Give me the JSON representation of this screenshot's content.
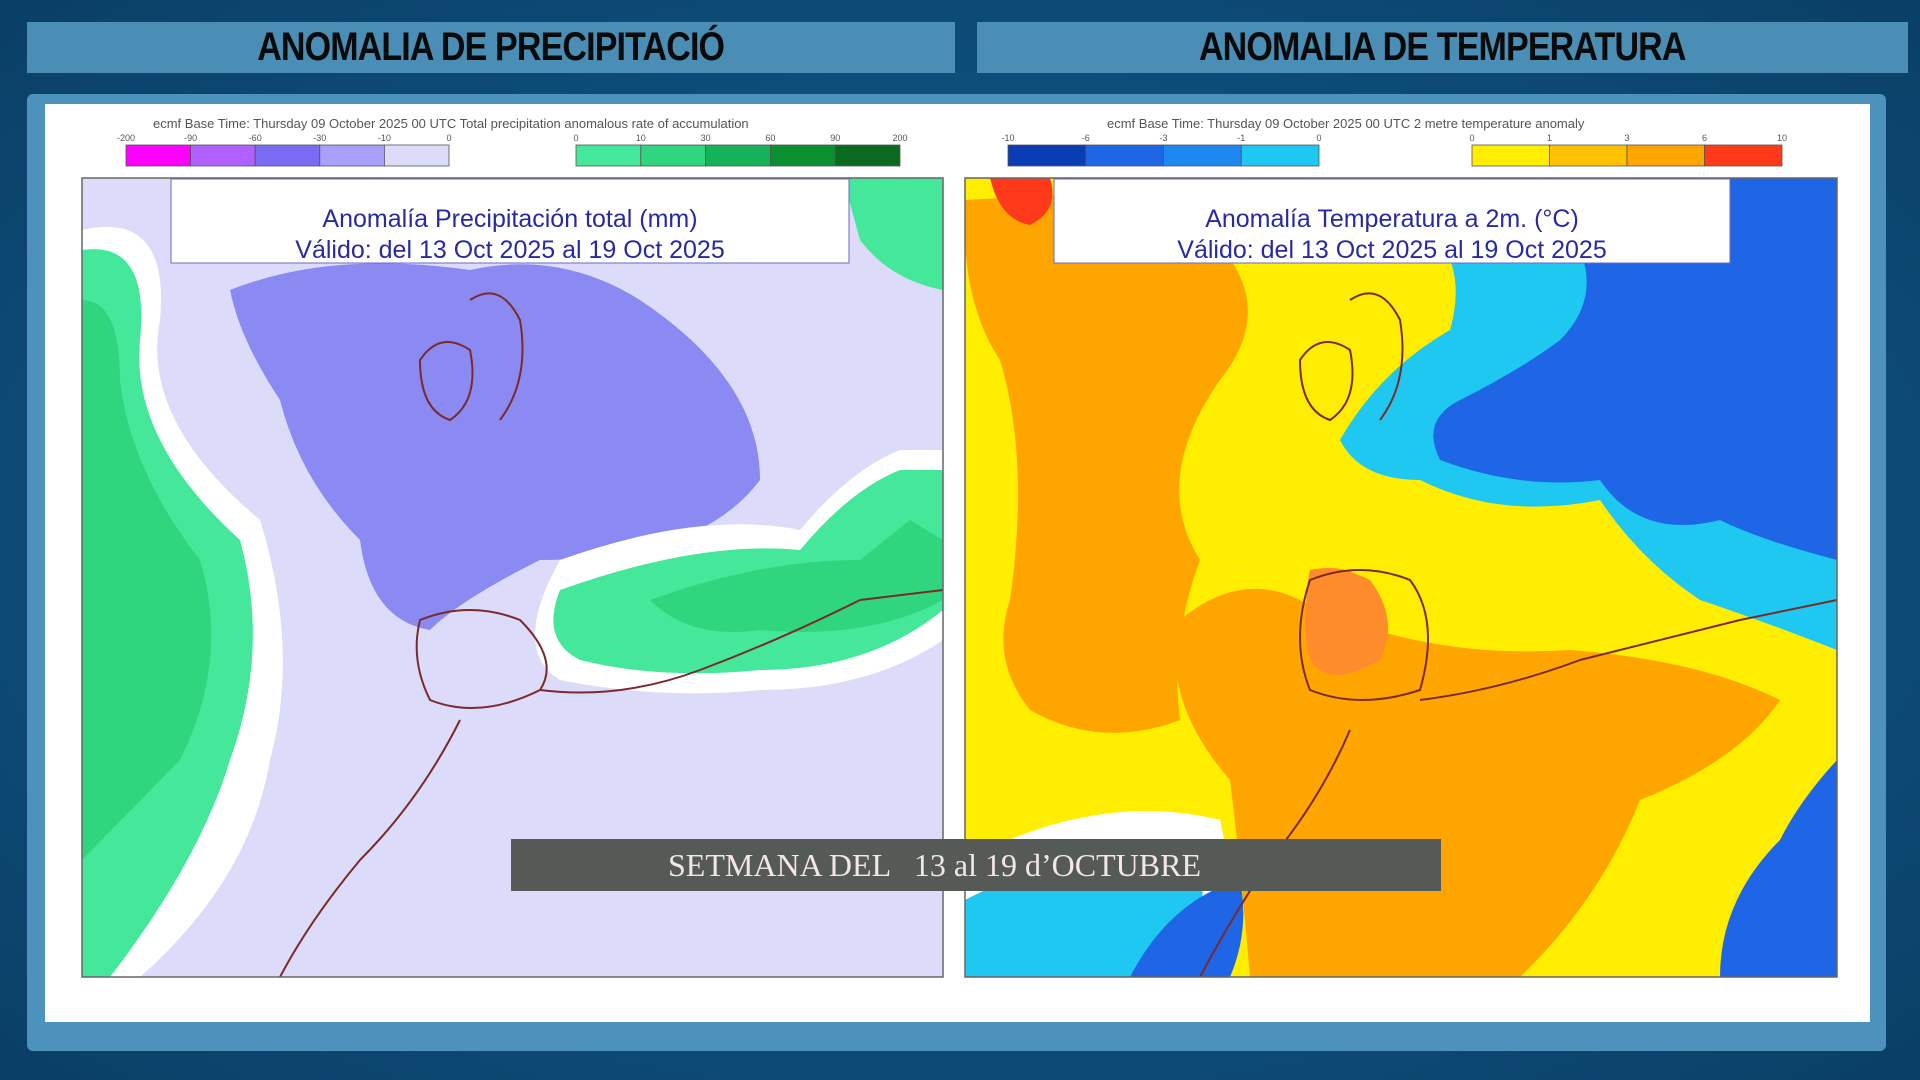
{
  "headers": [
    "ANOMALIA DE PRECIPITACIÓ",
    "ANOMALIA DE TEMPERATURA"
  ],
  "maps": [
    {
      "source": "ecmf  Base Time: Thursday 09 October 2025 00 UTC Total precipitation anomalous rate of accumulation",
      "scale_negative": [
        "-200",
        "-90",
        "-60",
        "-30",
        "-10",
        "0"
      ],
      "scale_positive": [
        "0",
        "10",
        "30",
        "60",
        "90",
        "200"
      ],
      "title": [
        "Anomalía Precipitación total (mm)",
        "Válido: del 13 Oct 2025 al 19 Oct 2025"
      ]
    },
    {
      "source": "ecmf  Base Time: Thursday 09 October 2025 00 UTC 2 metre temperature anomaly",
      "scale_negative": [
        "-10",
        "-6",
        "-3",
        "-1",
        "0"
      ],
      "scale_positive": [
        "0",
        "1",
        "3",
        "6",
        "10"
      ],
      "title": [
        "Anomalía Temperatura a 2m. (°C)",
        "Válido: del 13 Oct 2025 al 19 Oct 2025"
      ]
    }
  ],
  "banner": "SETMANA DEL   13 al 19 d’OCTUBRE"
}
